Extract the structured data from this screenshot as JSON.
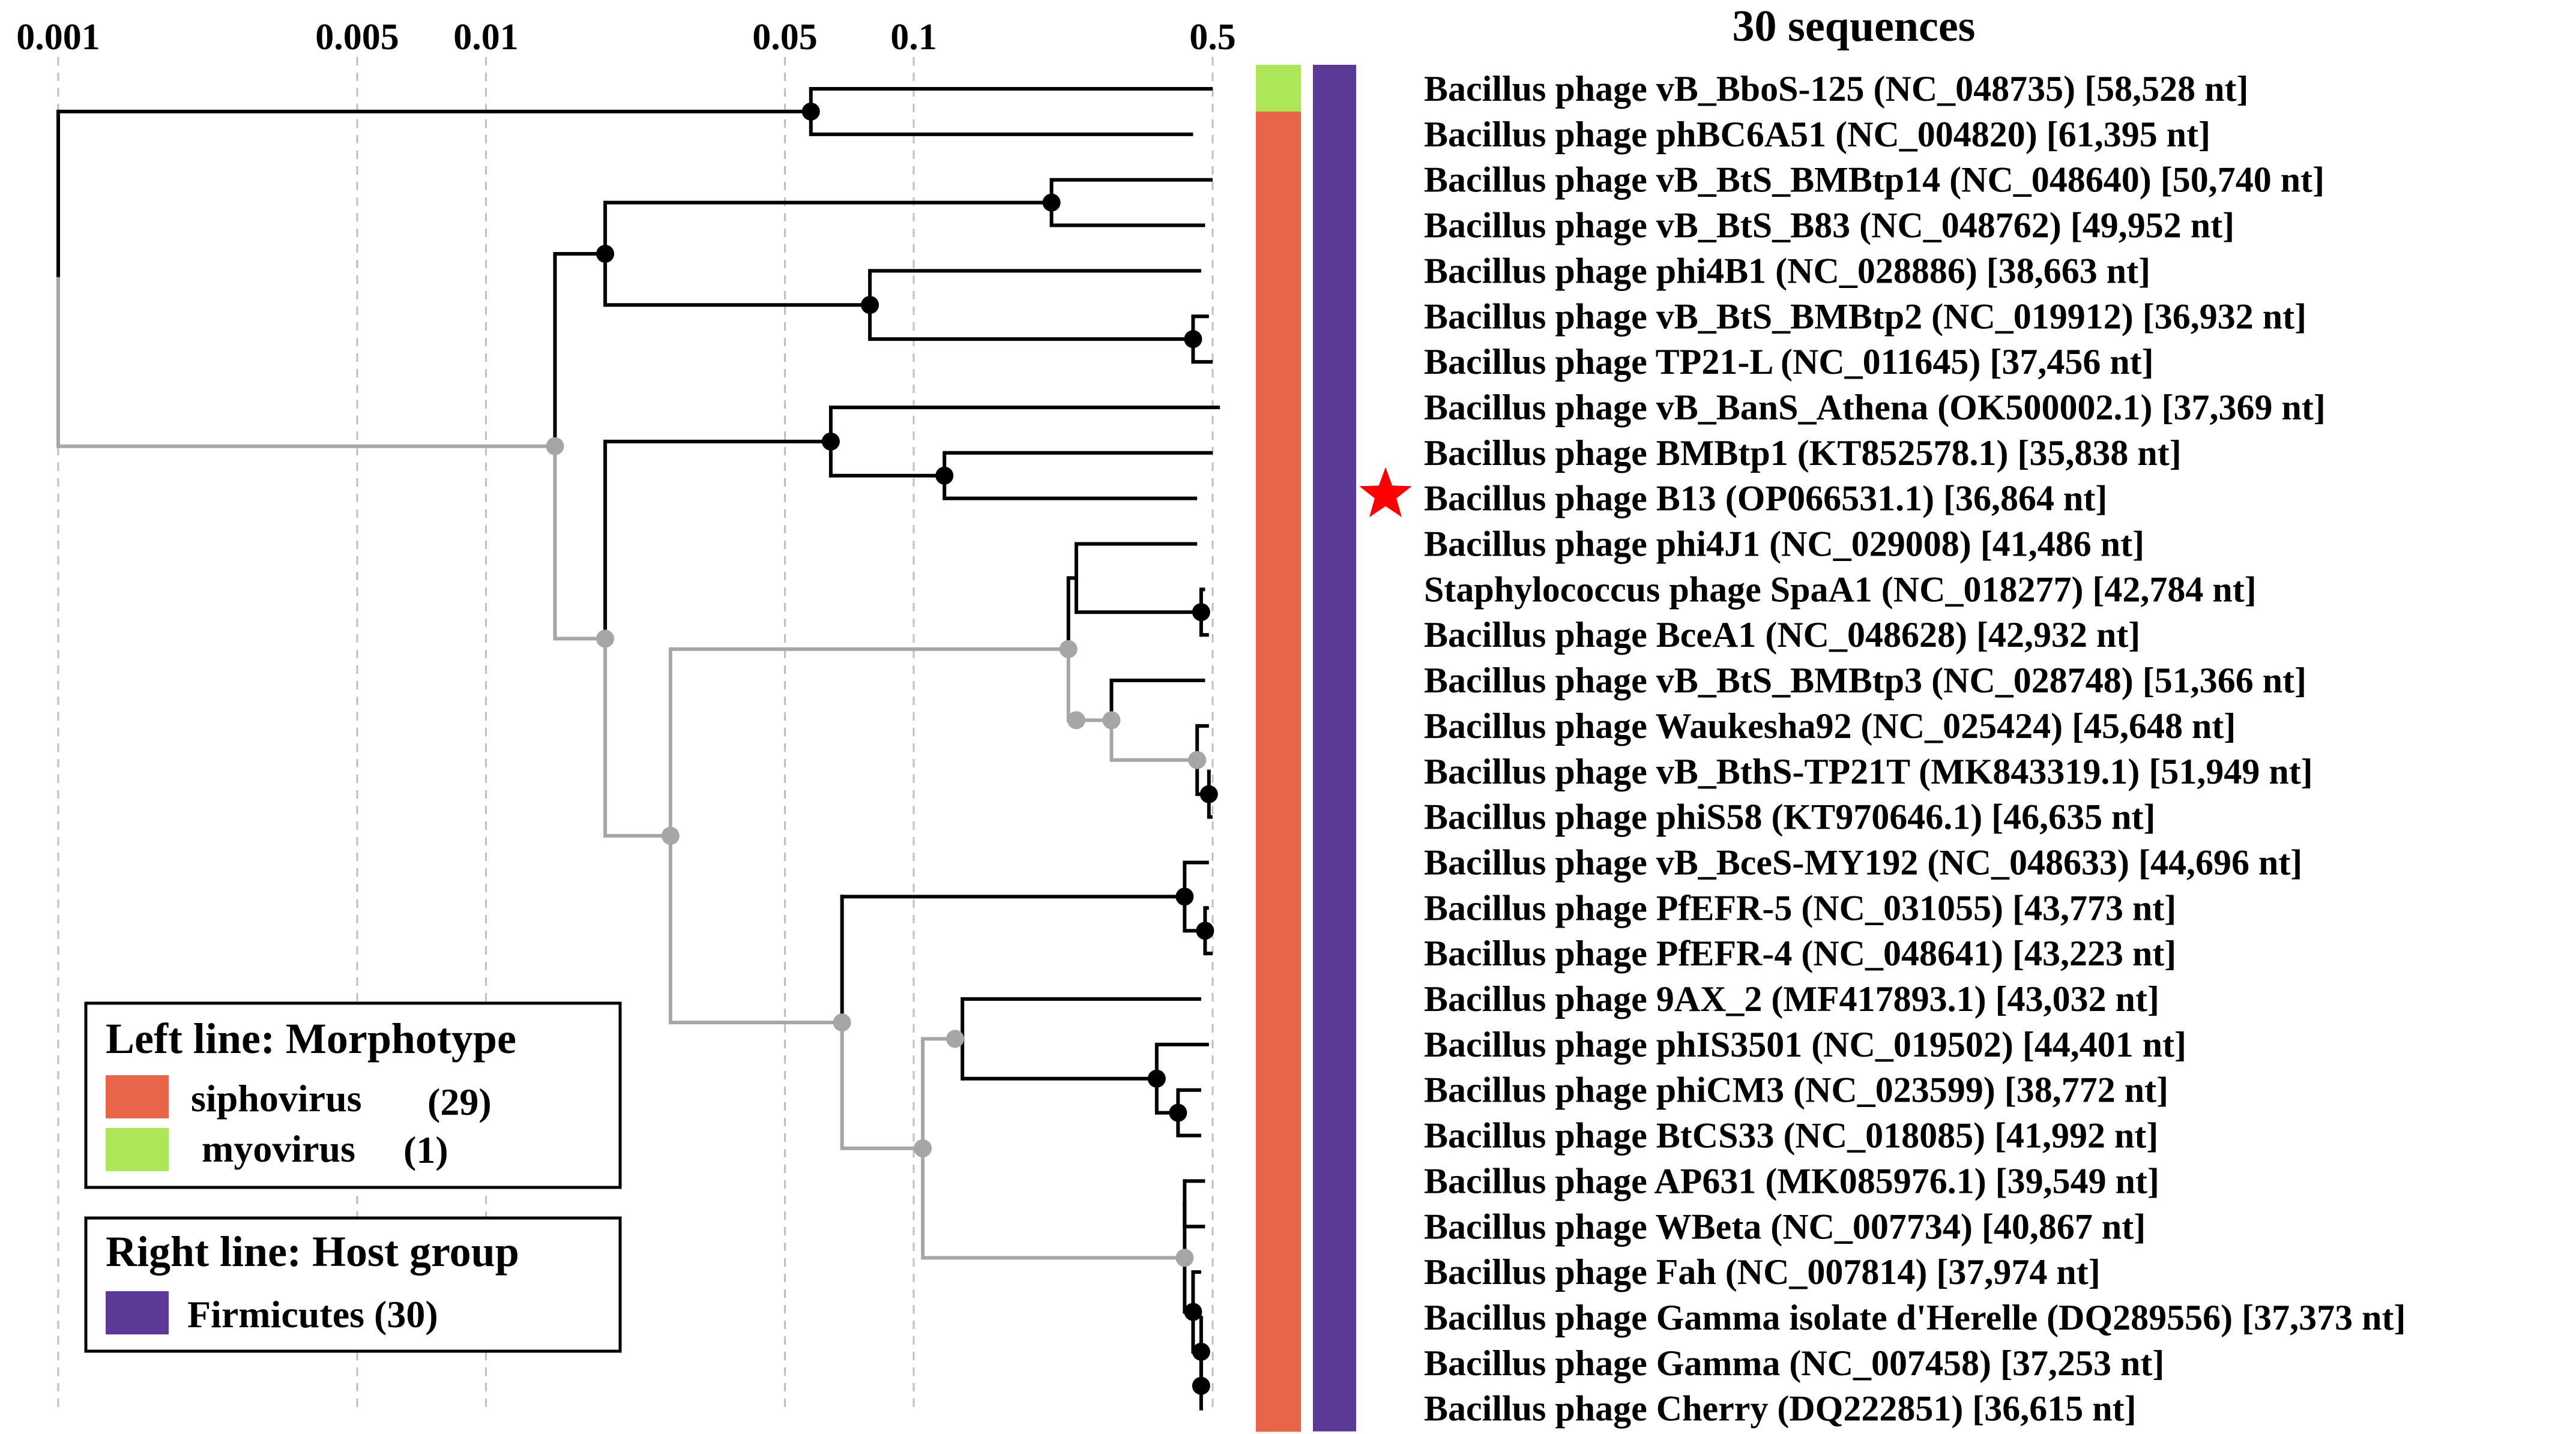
{
  "title": "30 sequences",
  "scale": {
    "type": "log",
    "domain_min": 0.001,
    "domain_max": 0.5,
    "ticks": [
      {
        "value": 0.001,
        "label": "0.001"
      },
      {
        "value": 0.005,
        "label": "0.005"
      },
      {
        "value": 0.01,
        "label": "0.01"
      },
      {
        "value": 0.05,
        "label": "0.05"
      },
      {
        "value": 0.1,
        "label": "0.1"
      },
      {
        "value": 0.5,
        "label": "0.5"
      }
    ]
  },
  "colors": {
    "siphovirus": "#e8654a",
    "myovirus": "#aee65a",
    "firmicutes": "#5b3a97",
    "branch_black": "#000000",
    "branch_gray": "#a6a6a6",
    "star": "#ff0000",
    "gridline": "#bfbfbf"
  },
  "leaves": [
    {
      "label": "Bacillus phage vB_BboS-125 (NC_048735) [58,528 nt]",
      "morphotype": "myovirus",
      "host": "Firmicutes"
    },
    {
      "label": "Bacillus phage phBC6A51 (NC_004820) [61,395 nt]",
      "morphotype": "siphovirus",
      "host": "Firmicutes"
    },
    {
      "label": "Bacillus phage vB_BtS_BMBtp14 (NC_048640) [50,740 nt]",
      "morphotype": "siphovirus",
      "host": "Firmicutes"
    },
    {
      "label": "Bacillus phage vB_BtS_B83 (NC_048762) [49,952 nt]",
      "morphotype": "siphovirus",
      "host": "Firmicutes"
    },
    {
      "label": "Bacillus phage phi4B1 (NC_028886) [38,663 nt]",
      "morphotype": "siphovirus",
      "host": "Firmicutes"
    },
    {
      "label": "Bacillus phage vB_BtS_BMBtp2 (NC_019912) [36,932 nt]",
      "morphotype": "siphovirus",
      "host": "Firmicutes"
    },
    {
      "label": "Bacillus phage TP21-L (NC_011645) [37,456 nt]",
      "morphotype": "siphovirus",
      "host": "Firmicutes"
    },
    {
      "label": "Bacillus phage vB_BanS_Athena (OK500002.1) [37,369 nt]",
      "morphotype": "siphovirus",
      "host": "Firmicutes"
    },
    {
      "label": "Bacillus phage BMBtp1 (KT852578.1) [35,838 nt]",
      "morphotype": "siphovirus",
      "host": "Firmicutes"
    },
    {
      "label": "Bacillus phage B13 (OP066531.1) [36,864 nt]",
      "morphotype": "siphovirus",
      "host": "Firmicutes",
      "starred": true
    },
    {
      "label": "Bacillus phage phi4J1 (NC_029008) [41,486 nt]",
      "morphotype": "siphovirus",
      "host": "Firmicutes"
    },
    {
      "label": "Staphylococcus phage SpaA1 (NC_018277) [42,784 nt]",
      "morphotype": "siphovirus",
      "host": "Firmicutes"
    },
    {
      "label": "Bacillus phage BceA1 (NC_048628) [42,932 nt]",
      "morphotype": "siphovirus",
      "host": "Firmicutes"
    },
    {
      "label": "Bacillus phage vB_BtS_BMBtp3 (NC_028748) [51,366 nt]",
      "morphotype": "siphovirus",
      "host": "Firmicutes"
    },
    {
      "label": "Bacillus phage Waukesha92 (NC_025424) [45,648 nt]",
      "morphotype": "siphovirus",
      "host": "Firmicutes"
    },
    {
      "label": "Bacillus phage vB_BthS-TP21T (MK843319.1) [51,949 nt]",
      "morphotype": "siphovirus",
      "host": "Firmicutes"
    },
    {
      "label": "Bacillus phage phiS58 (KT970646.1) [46,635 nt]",
      "morphotype": "siphovirus",
      "host": "Firmicutes"
    },
    {
      "label": "Bacillus phage vB_BceS-MY192 (NC_048633) [44,696 nt]",
      "morphotype": "siphovirus",
      "host": "Firmicutes"
    },
    {
      "label": "Bacillus phage PfEFR-5 (NC_031055) [43,773 nt]",
      "morphotype": "siphovirus",
      "host": "Firmicutes"
    },
    {
      "label": "Bacillus phage PfEFR-4 (NC_048641) [43,223 nt]",
      "morphotype": "siphovirus",
      "host": "Firmicutes"
    },
    {
      "label": "Bacillus phage 9AX_2 (MF417893.1) [43,032 nt]",
      "morphotype": "siphovirus",
      "host": "Firmicutes"
    },
    {
      "label": "Bacillus phage phIS3501 (NC_019502) [44,401 nt]",
      "morphotype": "siphovirus",
      "host": "Firmicutes"
    },
    {
      "label": "Bacillus phage phiCM3 (NC_023599) [38,772 nt]",
      "morphotype": "siphovirus",
      "host": "Firmicutes"
    },
    {
      "label": "Bacillus phage BtCS33 (NC_018085) [41,992 nt]",
      "morphotype": "siphovirus",
      "host": "Firmicutes"
    },
    {
      "label": "Bacillus phage AP631 (MK085976.1) [39,549 nt]",
      "morphotype": "siphovirus",
      "host": "Firmicutes"
    },
    {
      "label": "Bacillus phage WBeta (NC_007734) [40,867 nt]",
      "morphotype": "siphovirus",
      "host": "Firmicutes"
    },
    {
      "label": "Bacillus phage Fah (NC_007814) [37,974 nt]",
      "morphotype": "siphovirus",
      "host": "Firmicutes"
    },
    {
      "label": "Bacillus phage Gamma isolate d'Herelle (DQ289556) [37,373 nt]",
      "morphotype": "siphovirus",
      "host": "Firmicutes"
    },
    {
      "label": "Bacillus phage Gamma (NC_007458) [37,253 nt]",
      "morphotype": "siphovirus",
      "host": "Firmicutes"
    },
    {
      "label": "Bacillus phage Cherry (DQ222851) [36,615 nt]",
      "morphotype": "siphovirus",
      "host": "Firmicutes"
    }
  ],
  "tree": {
    "d": 0.001,
    "c": "g",
    "ch": [
      {
        "d": 0.0575,
        "c": "k",
        "dot": true,
        "ch": [
          {
            "d": 0.5,
            "c": "k",
            "leaf": 0
          },
          {
            "d": 0.45,
            "c": "k",
            "leaf": 1
          }
        ]
      },
      {
        "d": 0.0145,
        "c": "g",
        "dot": true,
        "ch": [
          {
            "d": 0.019,
            "c": "k",
            "dot": true,
            "ch": [
              {
                "d": 0.21,
                "c": "k",
                "dot": true,
                "ch": [
                  {
                    "d": 0.5,
                    "c": "k",
                    "leaf": 2
                  },
                  {
                    "d": 0.48,
                    "c": "k",
                    "leaf": 3
                  }
                ]
              },
              {
                "d": 0.079,
                "c": "k",
                "dot": true,
                "ch": [
                  {
                    "d": 0.47,
                    "c": "k",
                    "leaf": 4
                  },
                  {
                    "d": 0.45,
                    "c": "k",
                    "dot": true,
                    "ch": [
                      {
                        "d": 0.49,
                        "c": "k",
                        "leaf": 5
                      },
                      {
                        "d": 0.5,
                        "c": "k",
                        "leaf": 6
                      }
                    ]
                  }
                ]
              }
            ]
          },
          {
            "d": 0.019,
            "c": "g",
            "dot": true,
            "ch": [
              {
                "d": 0.064,
                "c": "k",
                "dot": true,
                "ch": [
                  {
                    "d": 0.52,
                    "c": "k",
                    "leaf": 7
                  },
                  {
                    "d": 0.118,
                    "c": "k",
                    "dot": true,
                    "ch": [
                      {
                        "d": 0.5,
                        "c": "k",
                        "leaf": 8
                      },
                      {
                        "d": 0.46,
                        "c": "k",
                        "leaf": 9
                      }
                    ]
                  }
                ]
              },
              {
                "d": 0.027,
                "c": "g",
                "dot": true,
                "ch": [
                  {
                    "d": 0.23,
                    "c": "g",
                    "dot": true,
                    "ch": [
                      {
                        "d": 0.24,
                        "c": "k",
                        "ch": [
                          {
                            "d": 0.46,
                            "c": "k",
                            "leaf": 10
                          },
                          {
                            "d": 0.47,
                            "c": "k",
                            "dot": true,
                            "ch": [
                              {
                                "d": 0.48,
                                "c": "k",
                                "leaf": 11
                              },
                              {
                                "d": 0.49,
                                "c": "k",
                                "leaf": 12
                              }
                            ]
                          }
                        ]
                      },
                      {
                        "d": 0.24,
                        "c": "g",
                        "dot": true,
                        "ch": [
                          {
                            "d": 0.29,
                            "c": "g",
                            "dot": true,
                            "ch": [
                              {
                                "d": 0.48,
                                "c": "k",
                                "leaf": 13
                              },
                              {
                                "d": 0.46,
                                "c": "g",
                                "dot": true,
                                "ch": [
                                  {
                                    "d": 0.49,
                                    "c": "k",
                                    "leaf": 14
                                  },
                                  {
                                    "d": 0.49,
                                    "c": "k",
                                    "dot": true,
                                    "ch": [
                                      {
                                        "d": 0.49,
                                        "c": "k",
                                        "leaf": 15
                                      },
                                      {
                                        "d": 0.5,
                                        "c": "k",
                                        "leaf": 16
                                      }
                                    ]
                                  }
                                ]
                              }
                            ]
                          }
                        ]
                      }
                    ]
                  },
                  {
                    "d": 0.068,
                    "c": "g",
                    "dot": true,
                    "ch": [
                      {
                        "d": 0.068,
                        "c": "k",
                        "ch": [
                          {
                            "d": 0.43,
                            "c": "k",
                            "dot": true,
                            "ch": [
                              {
                                "d": 0.49,
                                "c": "k",
                                "leaf": 17
                              },
                              {
                                "d": 0.48,
                                "c": "k",
                                "dot": true,
                                "ch": [
                                  {
                                    "d": 0.49,
                                    "c": "k",
                                    "leaf": 18
                                  },
                                  {
                                    "d": 0.5,
                                    "c": "k",
                                    "leaf": 19
                                  }
                                ]
                              }
                            ]
                          }
                        ]
                      },
                      {
                        "d": 0.105,
                        "c": "g",
                        "dot": true,
                        "ch": [
                          {
                            "d": 0.125,
                            "c": "g",
                            "dot": true,
                            "ch": [
                              {
                                "d": 0.13,
                                "c": "k",
                                "ch": [
                                  {
                                    "d": 0.47,
                                    "c": "k",
                                    "leaf": 20
                                  },
                                  {
                                    "d": 0.37,
                                    "c": "k",
                                    "dot": true,
                                    "ch": [
                                      {
                                        "d": 0.49,
                                        "c": "k",
                                        "leaf": 21
                                      },
                                      {
                                        "d": 0.415,
                                        "c": "k",
                                        "dot": true,
                                        "ch": [
                                          {
                                            "d": 0.47,
                                            "c": "k",
                                            "leaf": 22
                                          },
                                          {
                                            "d": 0.47,
                                            "c": "k",
                                            "leaf": 23
                                          }
                                        ]
                                      }
                                    ]
                                  }
                                ]
                              }
                            ]
                          },
                          {
                            "d": 0.43,
                            "c": "g",
                            "dot": true,
                            "ch": [
                              {
                                "d": 0.43,
                                "c": "k",
                                "ch": [
                                  {
                                    "d": 0.48,
                                    "c": "k",
                                    "leaf": 24
                                  },
                                  {
                                    "d": 0.48,
                                    "c": "k",
                                    "leaf": 25
                                  }
                                ]
                              },
                              {
                                "d": 0.45,
                                "c": "k",
                                "dot": true,
                                "ch": [
                                  {
                                    "d": 0.47,
                                    "c": "k",
                                    "leaf": 26
                                  },
                                  {
                                    "d": 0.47,
                                    "c": "k",
                                    "dot": true,
                                    "ch": [
                                      {
                                        "d": 0.47,
                                        "c": "k",
                                        "leaf": 27
                                      },
                                      {
                                        "d": 0.47,
                                        "c": "k",
                                        "dot": true,
                                        "ch": [
                                          {
                                            "d": 0.47,
                                            "c": "k",
                                            "leaf": 28
                                          },
                                          {
                                            "d": 0.47,
                                            "c": "k",
                                            "leaf": 29
                                          }
                                        ]
                                      }
                                    ]
                                  }
                                ]
                              }
                            ]
                          }
                        ]
                      }
                    ]
                  }
                ]
              }
            ]
          }
        ]
      }
    ]
  },
  "legend_morphotype": {
    "title": "Left line: Morphotype",
    "items": [
      {
        "label": "siphovirus",
        "count": "(29)",
        "color": "#e8654a"
      },
      {
        "label": "myovirus",
        "count": "(1)",
        "color": "#aee65a"
      }
    ]
  },
  "legend_host": {
    "title": "Right line: Host group",
    "items": [
      {
        "label": "Firmicutes (30)",
        "color": "#5b3a97"
      }
    ]
  }
}
